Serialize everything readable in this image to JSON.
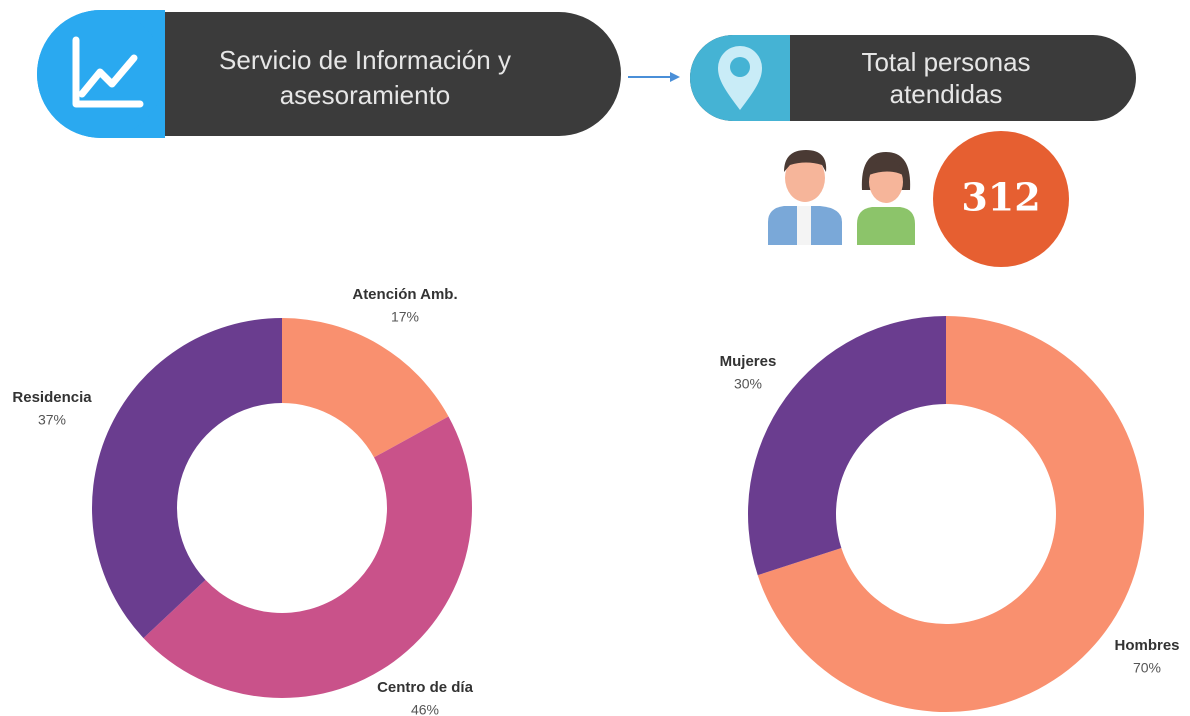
{
  "header": {
    "service_lines": [
      "Servicio de Información y",
      "asesoramiento"
    ],
    "total_lines": [
      "Total personas",
      "atendidas"
    ],
    "total_value": "312"
  },
  "chart_data": [
    {
      "type": "donut",
      "categories": [
        "Atención Amb.",
        "Centro de día",
        "Residencia"
      ],
      "values": [
        17,
        46,
        37
      ],
      "value_labels": [
        "17%",
        "46%",
        "37%"
      ],
      "colors": [
        "#f9906f",
        "#c9528a",
        "#6a3d8f"
      ]
    },
    {
      "type": "donut",
      "categories": [
        "Hombres",
        "Mujeres"
      ],
      "values": [
        70,
        30
      ],
      "value_labels": [
        "70%",
        "30%"
      ],
      "colors": [
        "#f9906f",
        "#6a3d8f"
      ]
    }
  ]
}
